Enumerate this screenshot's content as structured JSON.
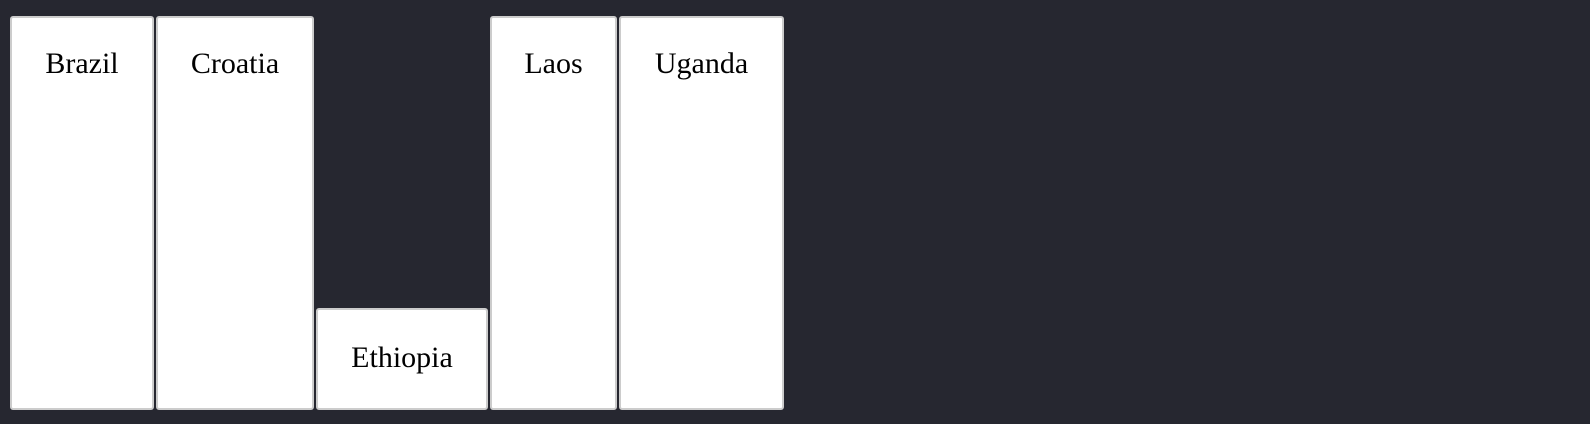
{
  "cards": [
    {
      "label": "Brazil"
    },
    {
      "label": "Croatia"
    },
    {
      "label": "Ethiopia"
    },
    {
      "label": "Laos"
    },
    {
      "label": "Uganda"
    }
  ],
  "colors": {
    "background": "#262730",
    "card": "#ffffff",
    "card_border": "#cccccc",
    "text": "#000000"
  }
}
